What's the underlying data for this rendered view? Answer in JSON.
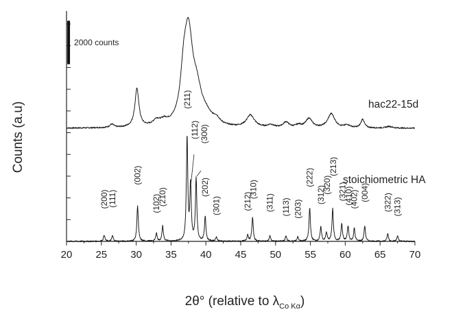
{
  "chart_data": {
    "type": "line",
    "title": "",
    "xlabel": "2θ° (relative to λ",
    "xlabel_sub": "Co Kα",
    "xlabel_close": ")",
    "ylabel": "Counts (a.u)",
    "xlim": [
      20,
      70
    ],
    "xticks": [
      "20",
      "25",
      "30",
      "35",
      "40",
      "45",
      "50",
      "55",
      "60",
      "65",
      "70"
    ],
    "ylim": [
      0,
      10600
    ],
    "grid": false,
    "legend": "none",
    "scale_bar_label": "2000 counts",
    "scale_bar_value": 2000,
    "series": [
      {
        "name": "hac22-15d",
        "baseline": 5200,
        "peaks": [
          [
            26.5,
            150,
            0.35
          ],
          [
            30.1,
            1750,
            0.35
          ],
          [
            32.9,
            250,
            0.6
          ],
          [
            34.0,
            200,
            0.6
          ],
          [
            36.8,
            1600,
            0.55
          ],
          [
            37.5,
            4000,
            0.75
          ],
          [
            38.7,
            1300,
            0.8
          ],
          [
            40.0,
            400,
            1.0
          ],
          [
            41.5,
            250,
            0.6
          ],
          [
            46.4,
            550,
            0.7
          ],
          [
            49.3,
            120,
            0.5
          ],
          [
            51.5,
            250,
            0.5
          ],
          [
            53.3,
            120,
            0.5
          ],
          [
            54.8,
            420,
            0.55
          ],
          [
            58.0,
            650,
            0.6
          ],
          [
            60.3,
            120,
            0.5
          ],
          [
            62.5,
            400,
            0.3
          ],
          [
            66.3,
            80,
            0.5
          ]
        ]
      },
      {
        "name": "stoichiometric HA",
        "baseline": 0,
        "peaks": [
          [
            25.4,
            300,
            0.12
          ],
          [
            26.6,
            260,
            0.12
          ],
          [
            30.2,
            1650,
            0.12
          ],
          [
            32.9,
            380,
            0.12
          ],
          [
            33.8,
            700,
            0.12
          ],
          [
            37.3,
            4800,
            0.12
          ],
          [
            37.8,
            2500,
            0.12
          ],
          [
            38.6,
            2900,
            0.12
          ],
          [
            39.9,
            1150,
            0.12
          ],
          [
            41.5,
            200,
            0.12
          ],
          [
            46.0,
            300,
            0.12
          ],
          [
            46.7,
            1100,
            0.12
          ],
          [
            49.2,
            250,
            0.12
          ],
          [
            51.5,
            250,
            0.12
          ],
          [
            53.2,
            200,
            0.12
          ],
          [
            54.9,
            1550,
            0.12
          ],
          [
            56.5,
            650,
            0.12
          ],
          [
            57.3,
            400,
            0.12
          ],
          [
            58.2,
            1500,
            0.12
          ],
          [
            59.5,
            800,
            0.12
          ],
          [
            60.4,
            700,
            0.12
          ],
          [
            61.3,
            600,
            0.12
          ],
          [
            62.8,
            700,
            0.12
          ],
          [
            66.1,
            350,
            0.12
          ],
          [
            67.5,
            250,
            0.12
          ]
        ]
      }
    ],
    "peak_labels": [
      {
        "text": "(200)",
        "x": 25.4,
        "y": 1500,
        "leader": false
      },
      {
        "text": "(111)",
        "x": 26.6,
        "y": 1550,
        "leader": false
      },
      {
        "text": "(002)",
        "x": 30.2,
        "y": 2600,
        "leader": false
      },
      {
        "text": "(102)",
        "x": 32.9,
        "y": 1300,
        "leader": false
      },
      {
        "text": "(210)",
        "x": 33.8,
        "y": 1600,
        "leader": false
      },
      {
        "text": "(211)",
        "x": 37.3,
        "y": 6100,
        "leader": false
      },
      {
        "text": "(112)",
        "x": 38.4,
        "y": 4700,
        "leader": true,
        "leader_from": [
          38.3,
          4000
        ],
        "leader_to": [
          37.85,
          2650
        ]
      },
      {
        "text": "(300)",
        "x": 39.8,
        "y": 4500,
        "leader": true,
        "leader_from": [
          39.3,
          3250
        ],
        "leader_to": [
          38.7,
          3000
        ]
      },
      {
        "text": "(202)",
        "x": 39.9,
        "y": 2050,
        "leader": false
      },
      {
        "text": "(301)",
        "x": 41.5,
        "y": 1200,
        "leader": false
      },
      {
        "text": "(212)",
        "x": 46.0,
        "y": 1400,
        "leader": false
      },
      {
        "text": "(310)",
        "x": 46.8,
        "y": 1950,
        "leader": false
      },
      {
        "text": "(311)",
        "x": 49.2,
        "y": 1350,
        "leader": false
      },
      {
        "text": "(113)",
        "x": 51.5,
        "y": 1150,
        "leader": false
      },
      {
        "text": "(203)",
        "x": 53.2,
        "y": 1050,
        "leader": false
      },
      {
        "text": "(222)",
        "x": 54.9,
        "y": 2500,
        "leader": false
      },
      {
        "text": "(312)",
        "x": 56.5,
        "y": 1700,
        "leader": false
      },
      {
        "text": "(320)",
        "x": 57.4,
        "y": 2150,
        "leader": false
      },
      {
        "text": "(213)",
        "x": 58.3,
        "y": 3000,
        "leader": false
      },
      {
        "text": "(321)",
        "x": 59.6,
        "y": 1850,
        "leader": false
      },
      {
        "text": "(410)",
        "x": 60.5,
        "y": 1650,
        "leader": false
      },
      {
        "text": "(402)",
        "x": 61.3,
        "y": 1500,
        "leader": false
      },
      {
        "text": "(004)",
        "x": 62.8,
        "y": 1800,
        "leader": false
      },
      {
        "text": "(322)",
        "x": 66.1,
        "y": 1350,
        "leader": false
      },
      {
        "text": "(313)",
        "x": 67.5,
        "y": 1150,
        "leader": false
      }
    ]
  }
}
